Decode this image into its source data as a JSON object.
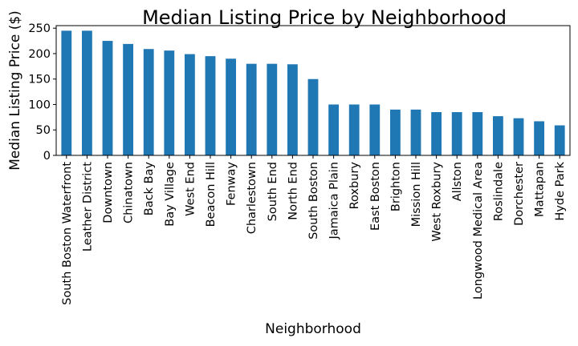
{
  "chart_data": {
    "type": "bar",
    "title": "Median Listing Price by Neighborhood",
    "xlabel": "Neighborhood",
    "ylabel": "Median Listing Price ($)",
    "ylim": [
      0,
      255
    ],
    "yticks": [
      0,
      50,
      100,
      150,
      200,
      250
    ],
    "grid": false,
    "legend": "none",
    "bar_color": "#1f77b4",
    "categories": [
      "South Boston Waterfront",
      "Leather District",
      "Downtown",
      "Chinatown",
      "Back Bay",
      "Bay Village",
      "West End",
      "Beacon Hill",
      "Fenway",
      "Charlestown",
      "South End",
      "North End",
      "South Boston",
      "Jamaica Plain",
      "Roxbury",
      "East Boston",
      "Brighton",
      "Mission Hill",
      "West Roxbury",
      "Allston",
      "Longwood Medical Area",
      "Roslindale",
      "Dorchester",
      "Mattapan",
      "Hyde Park"
    ],
    "values": [
      245,
      245,
      225,
      219,
      209,
      206,
      199,
      195,
      190,
      180,
      180,
      179,
      150,
      100,
      100,
      100,
      90,
      90,
      85,
      85,
      85,
      77,
      73,
      67,
      59
    ]
  }
}
